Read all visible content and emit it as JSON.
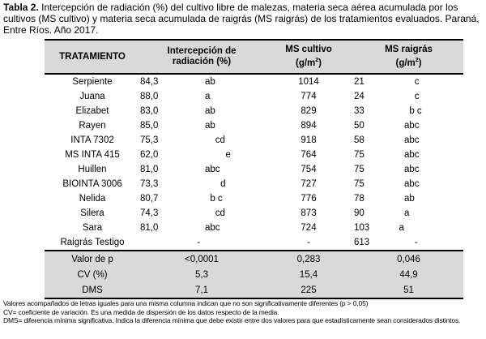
{
  "caption": {
    "label": "Tabla 2.",
    "text": " Intercepción de radiación (%) del cultivo libre de malezas, materia seca aérea acumulada por los cultivos (MS cultivo) y materia seca acumulada de raigrás (MS raigrás) de los tratamientos evaluados. Paraná, Entre Ríos. Año 2017."
  },
  "headers": {
    "tratamiento": "TRATAMIENTO",
    "intercepcion": "Intercepción de",
    "intercepcion2": "radiación (%)",
    "ms_cultivo": "MS cultivo",
    "ms_cultivo_unit": "(g/m",
    "ms_raigras": "MS raigrás",
    "ms_raigras_unit": "(g/m",
    "sup": "2",
    "close": ")"
  },
  "rows": [
    {
      "name": "Serpiente",
      "ir": "84,3",
      "ir_l": "          ab",
      "msc": "1014",
      "msr": "21",
      "msr_l": "              c"
    },
    {
      "name": "Juana",
      "ir": "88,0",
      "ir_l": "          a",
      "msc": "774",
      "msr": "24",
      "msr_l": "              c"
    },
    {
      "name": "Elizabet",
      "ir": "83,0",
      "ir_l": "          ab",
      "msc": "829",
      "msr": "33",
      "msr_l": "            b c"
    },
    {
      "name": "Rayen",
      "ir": "85,0",
      "ir_l": "          ab",
      "msc": "894",
      "msr": "50",
      "msr_l": "          abc"
    },
    {
      "name": "INTA 7302",
      "ir": "75,3",
      "ir_l": "              cd",
      "msc": "918",
      "msr": "58",
      "msr_l": "          abc"
    },
    {
      "name": "MS INTA 415",
      "ir": "62,0",
      "ir_l": "                  e",
      "msc": "764",
      "msr": "75",
      "msr_l": "          abc"
    },
    {
      "name": "Huillen",
      "ir": "81,0",
      "ir_l": "          abc",
      "msc": "754",
      "msr": "75",
      "msr_l": "          abc"
    },
    {
      "name": "BIOINTA 3006",
      "ir": "73,3",
      "ir_l": "                d",
      "msc": "727",
      "msr": "75",
      "msr_l": "          abc"
    },
    {
      "name": "Nelida",
      "ir": "80,7",
      "ir_l": "            b c",
      "msc": "776",
      "msr": "78",
      "msr_l": "          ab"
    },
    {
      "name": "Silera",
      "ir": "74,3",
      "ir_l": "              cd",
      "msc": "873",
      "msr": "90",
      "msr_l": "          a"
    },
    {
      "name": "Sara",
      "ir": "81,0",
      "ir_l": "          abc",
      "msc": "724",
      "msr": "103",
      "msr_l": "        a"
    },
    {
      "name": "Raigrás Testigo",
      "ir": "",
      "ir_l": "       -",
      "msc": "-",
      "msr": "613",
      "msr_l": "              -"
    }
  ],
  "stats": [
    {
      "name": "Valor de p",
      "ir": "<0,0001",
      "msc": "0,283",
      "msr": "0,046"
    },
    {
      "name": "CV (%)",
      "ir": "5,3",
      "msc": "15,4",
      "msr": "44,9"
    },
    {
      "name": "DMS",
      "ir": "7,1",
      "msc": "225",
      "msr": "51"
    }
  ],
  "footnotes": [
    "Valores acompañados de letras iguales para una misma columna indican que no son significativamente diferentes (p > 0,05)",
    "CV= coeficiente de variación. Es una medida de dispersión de los datos respecto de la media.",
    "DMS= diferencia mínima significativa. Indica la diferencia mínima que debe existir entre dos valores para que estadísticamente sean considerados distintos."
  ]
}
